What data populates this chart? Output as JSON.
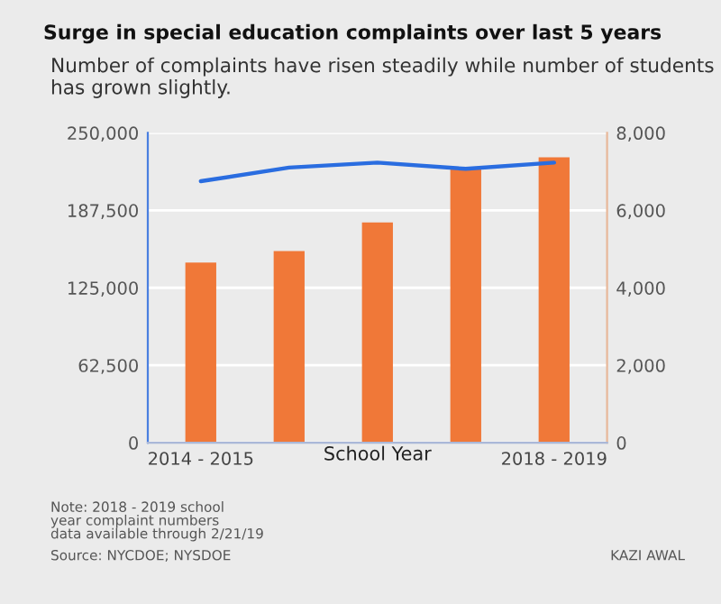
{
  "chart_data": {
    "type": "bar",
    "title": "Surge in special education complaints over last 5 years",
    "subtitle": "Number of complaints have risen steadily while number of students has grown slightly.",
    "xlabel": "School Year",
    "categories": [
      "2014 - 2015",
      null,
      null,
      null,
      "2018 - 2019"
    ],
    "series": [
      {
        "axis": "y2",
        "color": "#f07838",
        "values": [
          4650,
          4950,
          5690,
          7090,
          7370
        ]
      },
      {
        "type": "line",
        "axis": "y",
        "color": "#2a6de0",
        "values": [
          211000,
          222000,
          226000,
          221000,
          226000
        ]
      }
    ],
    "ylim": [
      0,
      250000
    ],
    "yticks": [
      0,
      {
        "value": 62500,
        "label": "62,500"
      },
      {
        "value": 125000,
        "label": "125,000"
      },
      {
        "value": 187500,
        "label": "187,500"
      },
      {
        "value": 250000,
        "label": "250,000"
      }
    ],
    "y2lim": [
      0,
      8000
    ],
    "y2ticks": [
      0,
      {
        "value": 2000,
        "label": "2,000"
      },
      {
        "value": 4000,
        "label": "4,000"
      },
      {
        "value": 6000,
        "label": "6,000"
      },
      {
        "value": 8000,
        "label": "8,000"
      }
    ],
    "grid": "y",
    "annotations": [
      "Note: 2018 - 2019 school\nyear complaint numbers\ndata available through 2/21/19",
      "Source: NYCDOE; NYSDOE",
      "KAZI AWAL"
    ]
  }
}
